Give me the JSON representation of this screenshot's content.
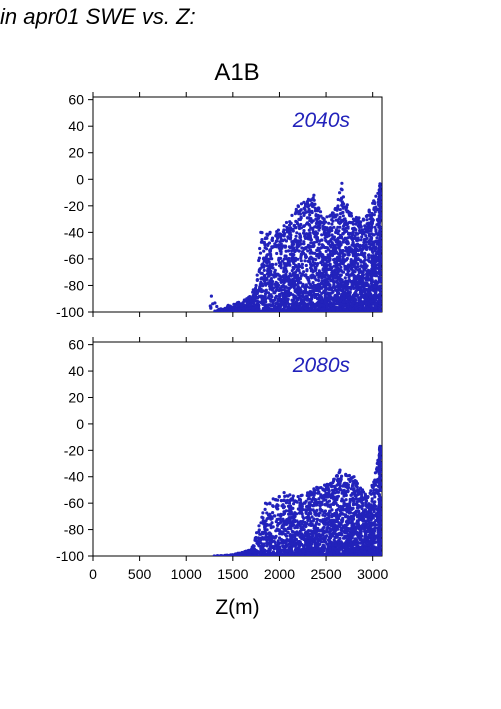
{
  "figure_title": "in apr01 SWE vs. Z:",
  "scenario": "A1B",
  "colors": {
    "points": "#2222bb",
    "axis": "#000000"
  },
  "chart_data": [
    {
      "type": "scatter",
      "panel_label": "2040s",
      "xlabel": "",
      "xlim": [
        0,
        3100
      ],
      "ylim": [
        -100,
        62
      ],
      "xticks": [
        0,
        500,
        1000,
        1500,
        2000,
        2500,
        3000
      ],
      "yticks": [
        60,
        40,
        20,
        0,
        -20,
        -40,
        -60,
        -80,
        -100
      ],
      "show_xtick_labels": false,
      "series": [
        {
          "x_range": [
            1250,
            3085
          ],
          "y_range": [
            -100,
            -3
          ],
          "approx_point_count": 3400,
          "description_points": [
            [
              1270,
              -88
            ],
            [
              1350,
              -98
            ],
            [
              1450,
              -95
            ],
            [
              1550,
              -93
            ],
            [
              1650,
              -90
            ],
            [
              1750,
              -80
            ],
            [
              1800,
              -40
            ],
            [
              1900,
              -40
            ],
            [
              2050,
              -35
            ],
            [
              2200,
              -20
            ],
            [
              2370,
              -12
            ],
            [
              2480,
              -30
            ],
            [
              2600,
              -22
            ],
            [
              2670,
              -3
            ],
            [
              2750,
              -25
            ],
            [
              2900,
              -30
            ],
            [
              3000,
              -18
            ],
            [
              3075,
              -5
            ]
          ]
        }
      ]
    },
    {
      "type": "scatter",
      "panel_label": "2080s",
      "xlabel": "Z(m)",
      "xlim": [
        0,
        3100
      ],
      "ylim": [
        -100,
        62
      ],
      "xticks": [
        0,
        500,
        1000,
        1500,
        2000,
        2500,
        3000
      ],
      "yticks": [
        60,
        40,
        20,
        0,
        -20,
        -40,
        -60,
        -80,
        -100
      ],
      "xtick_labels": [
        "0",
        "500",
        "1000",
        "1500",
        "2000",
        "2500",
        "3000"
      ],
      "show_xtick_labels": true,
      "series": [
        {
          "x_range": [
            1300,
            3085
          ],
          "y_range": [
            -100,
            -17
          ],
          "approx_point_count": 2600,
          "description_points": [
            [
              1300,
              -100
            ],
            [
              1500,
              -99
            ],
            [
              1700,
              -95
            ],
            [
              1850,
              -60
            ],
            [
              2050,
              -52
            ],
            [
              2200,
              -55
            ],
            [
              2400,
              -48
            ],
            [
              2550,
              -45
            ],
            [
              2650,
              -35
            ],
            [
              2800,
              -40
            ],
            [
              2950,
              -55
            ],
            [
              3050,
              -30
            ],
            [
              3080,
              -17
            ]
          ]
        }
      ]
    }
  ]
}
